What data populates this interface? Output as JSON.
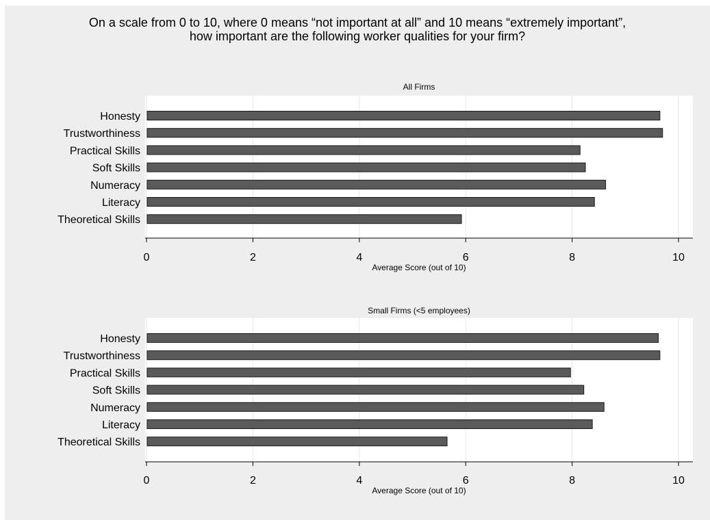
{
  "figure": {
    "title_line1": "On a scale from 0 to 10, where 0 means “not important at all” and 10 means “extremely important”,",
    "title_line2": "how important are the following worker qualities for your firm?"
  },
  "colors": {
    "background": "#eeeeee",
    "plot_area": "#ffffff",
    "bar_fill": "#5a5a5a",
    "bar_stroke": "#1a1a1a",
    "grid": "#e6e6e6"
  },
  "chart_data": [
    {
      "type": "bar",
      "orientation": "horizontal",
      "title": "All Firms",
      "categories": [
        "Honesty",
        "Trustworthiness",
        "Practical Skills",
        "Soft Skills",
        "Numeracy",
        "Literacy",
        "Theoretical Skills"
      ],
      "values": [
        9.65,
        9.7,
        8.15,
        8.25,
        8.63,
        8.42,
        5.92
      ],
      "xlabel": "Average Score (out of 10)",
      "xticks": [
        "0",
        "2",
        "4",
        "6",
        "8",
        "10"
      ],
      "xlim": [
        0,
        10.25
      ],
      "grid": true
    },
    {
      "type": "bar",
      "orientation": "horizontal",
      "title": "Small Firms (<5 employees)",
      "categories": [
        "Honesty",
        "Trustworthiness",
        "Practical Skills",
        "Soft Skills",
        "Numeracy",
        "Literacy",
        "Theoretical Skills"
      ],
      "values": [
        9.62,
        9.65,
        7.97,
        8.22,
        8.6,
        8.38,
        5.65
      ],
      "xlabel": "Average Score (out of 10)",
      "xticks": [
        "0",
        "2",
        "4",
        "6",
        "8",
        "10"
      ],
      "xlim": [
        0,
        10.25
      ],
      "grid": true
    }
  ]
}
